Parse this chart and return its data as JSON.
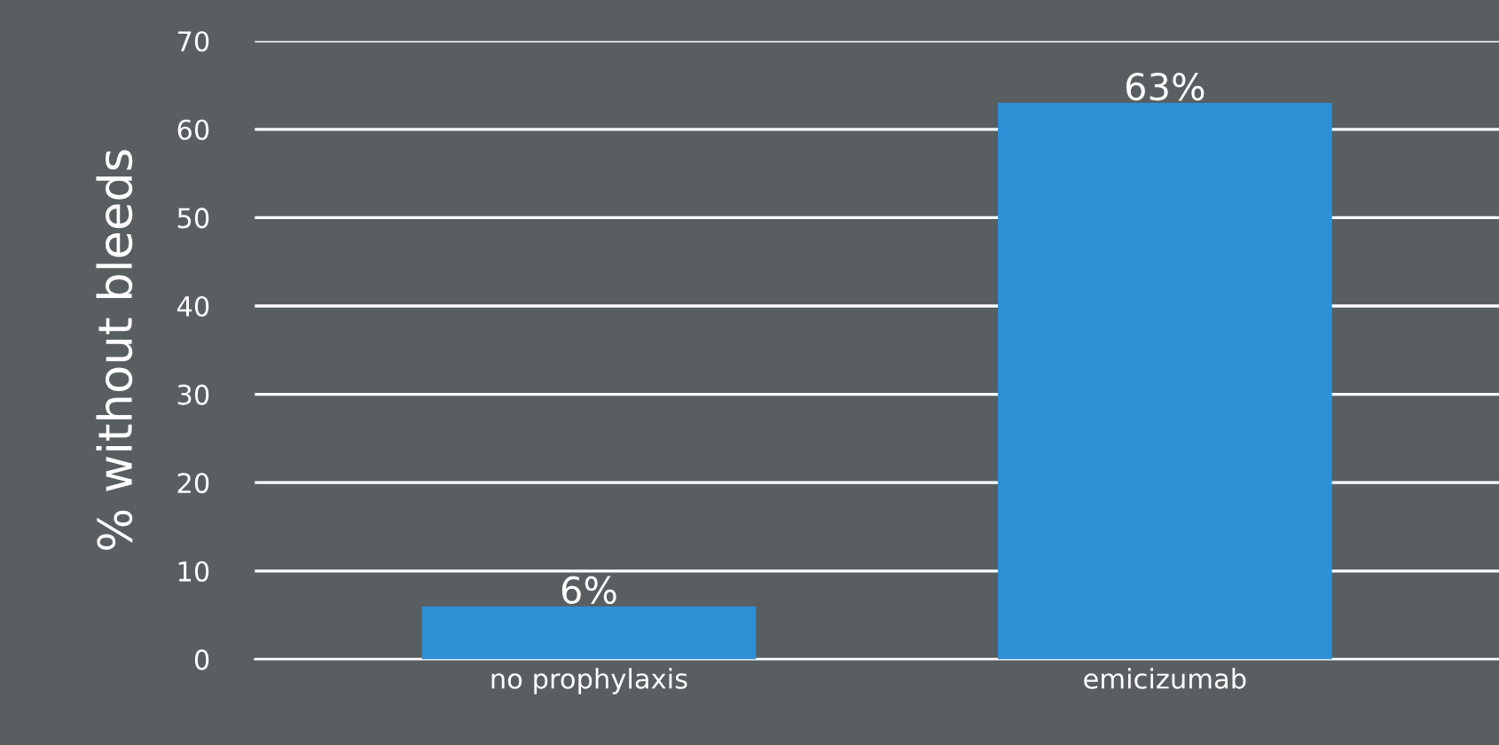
{
  "chart_data": {
    "type": "bar",
    "ylabel": "% without bleeds",
    "categories": [
      "no prophylaxis",
      "emicizumab"
    ],
    "values": [
      6,
      63
    ],
    "color": "#2e90d5",
    "value_labels": [
      "6%",
      "63%"
    ],
    "ylim": [
      0,
      70
    ],
    "yticks": [
      0,
      10,
      20,
      30,
      40,
      50,
      60,
      70
    ],
    "grid": "y"
  }
}
